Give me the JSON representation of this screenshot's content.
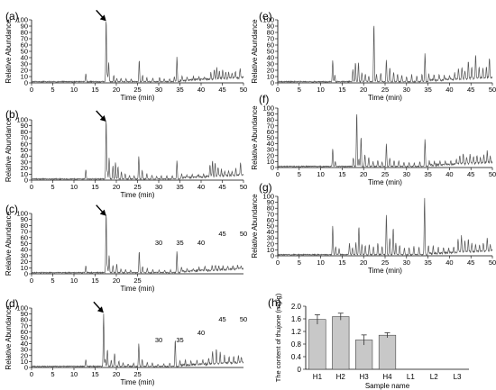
{
  "figure": {
    "background": "#ffffff",
    "trace_color": "#555555",
    "bar_color": "#c8c8c8",
    "arrow_icon": "arrow-icon"
  },
  "chart_data": [
    {
      "id": "a",
      "panel_label": "(a)",
      "type": "line",
      "ylabel": "Relative Abundance",
      "xlabel": "Time (min)",
      "xlim": [
        0,
        50
      ],
      "ylim": [
        0,
        100
      ],
      "xticks": [
        0,
        5,
        10,
        15,
        20,
        25,
        30,
        35,
        40,
        45,
        50
      ],
      "yticks": [
        0,
        10,
        20,
        30,
        40,
        50,
        60,
        70,
        80,
        90,
        100
      ],
      "arrow_at": [
        17.6,
        98
      ],
      "peaks": [
        [
          12.8,
          13
        ],
        [
          17.6,
          100
        ],
        [
          17.9,
          10
        ],
        [
          18.2,
          30
        ],
        [
          19.4,
          10
        ],
        [
          20.1,
          5
        ],
        [
          21.1,
          5
        ],
        [
          22.3,
          4
        ],
        [
          23.5,
          4
        ],
        [
          25.4,
          35
        ],
        [
          26.2,
          10
        ],
        [
          27.2,
          6
        ],
        [
          28.6,
          6
        ],
        [
          30.2,
          7
        ],
        [
          31.3,
          4
        ],
        [
          32.6,
          5
        ],
        [
          33.7,
          8
        ],
        [
          34.3,
          39
        ],
        [
          35.5,
          7
        ],
        [
          36.7,
          6
        ],
        [
          38.2,
          6
        ],
        [
          39.5,
          5
        ],
        [
          40.8,
          4
        ],
        [
          42.3,
          10
        ],
        [
          43.1,
          14
        ],
        [
          43.7,
          18
        ],
        [
          44.3,
          12
        ],
        [
          45.1,
          14
        ],
        [
          45.8,
          11
        ],
        [
          46.5,
          9
        ],
        [
          47.3,
          8
        ],
        [
          48.1,
          11
        ],
        [
          49.2,
          15
        ]
      ]
    },
    {
      "id": "b",
      "panel_label": "(b)",
      "type": "line",
      "ylabel": "Relative Abundance",
      "xlabel": "Time (min)",
      "xlim": [
        0,
        50
      ],
      "ylim": [
        0,
        100
      ],
      "xticks": [
        0,
        5,
        10,
        15,
        20,
        25,
        30,
        35,
        40,
        45,
        50
      ],
      "yticks": [
        0,
        10,
        20,
        30,
        40,
        50,
        60,
        70,
        80,
        90,
        100
      ],
      "arrow_at": [
        17.6,
        97
      ],
      "peaks": [
        [
          12.8,
          16
        ],
        [
          17.6,
          100
        ],
        [
          17.9,
          12
        ],
        [
          18.3,
          35
        ],
        [
          19.2,
          22
        ],
        [
          19.8,
          28
        ],
        [
          20.4,
          20
        ],
        [
          21.2,
          12
        ],
        [
          22.1,
          8
        ],
        [
          23.1,
          6
        ],
        [
          24.2,
          5
        ],
        [
          25.3,
          37
        ],
        [
          26.1,
          14
        ],
        [
          27.2,
          9
        ],
        [
          28.4,
          7
        ],
        [
          29.5,
          5
        ],
        [
          30.6,
          6
        ],
        [
          31.9,
          5
        ],
        [
          33.2,
          6
        ],
        [
          34.3,
          30
        ],
        [
          35.4,
          7
        ],
        [
          36.6,
          5
        ],
        [
          37.9,
          5
        ],
        [
          39.3,
          5
        ],
        [
          40.6,
          6
        ],
        [
          42.1,
          20
        ],
        [
          42.7,
          25
        ],
        [
          43.3,
          22
        ],
        [
          44.0,
          15
        ],
        [
          44.8,
          12
        ],
        [
          45.6,
          9
        ],
        [
          46.5,
          7
        ],
        [
          47.3,
          8
        ],
        [
          48.2,
          12
        ],
        [
          49.3,
          22
        ]
      ]
    },
    {
      "id": "c",
      "panel_label": "(c)",
      "type": "line",
      "ylabel": "Relative Abundance",
      "xlabel": "Time (min)",
      "xlim": [
        0,
        50
      ],
      "ylim": [
        0,
        100
      ],
      "xticks": [
        0,
        5,
        10,
        15,
        20,
        25
      ],
      "extra_ticks": [
        30,
        35,
        40,
        45,
        50
      ],
      "yticks": [
        0,
        10,
        20,
        30,
        40,
        50,
        60,
        70,
        80,
        90,
        100
      ],
      "arrow_at": [
        17.6,
        96
      ],
      "peaks": [
        [
          12.8,
          11
        ],
        [
          17.6,
          100
        ],
        [
          17.9,
          10
        ],
        [
          18.3,
          29
        ],
        [
          19.2,
          12
        ],
        [
          20.1,
          14
        ],
        [
          21.1,
          6
        ],
        [
          22.2,
          5
        ],
        [
          23.4,
          4
        ],
        [
          25.4,
          36
        ],
        [
          26.2,
          10
        ],
        [
          27.3,
          7
        ],
        [
          28.6,
          5
        ],
        [
          30.1,
          4
        ],
        [
          31.4,
          4
        ],
        [
          32.8,
          4
        ],
        [
          34.3,
          35
        ],
        [
          35.4,
          8
        ],
        [
          36.7,
          5
        ],
        [
          38.1,
          4
        ],
        [
          39.5,
          5
        ],
        [
          40.9,
          6
        ],
        [
          42.6,
          7
        ],
        [
          43.4,
          9
        ],
        [
          44.2,
          7
        ],
        [
          45.2,
          6
        ],
        [
          46.3,
          5
        ],
        [
          47.5,
          5
        ],
        [
          48.6,
          6
        ],
        [
          49.4,
          5
        ]
      ]
    },
    {
      "id": "d",
      "panel_label": "(d)",
      "type": "line",
      "ylabel": "Relative Abundance",
      "xlabel": "Time (min)",
      "xlim": [
        0,
        50
      ],
      "ylim": [
        0,
        100
      ],
      "xticks": [
        0,
        5,
        10,
        15,
        20,
        25
      ],
      "extra_ticks": [
        30,
        35,
        40,
        45,
        50
      ],
      "yticks": [
        0,
        10,
        20,
        30,
        40,
        50,
        60,
        70,
        80,
        90,
        100
      ],
      "arrow_at": [
        17.0,
        92
      ],
      "peaks": [
        [
          12.8,
          11
        ],
        [
          17.0,
          89
        ],
        [
          17.4,
          12
        ],
        [
          17.9,
          28
        ],
        [
          18.8,
          10
        ],
        [
          19.6,
          22
        ],
        [
          20.6,
          9
        ],
        [
          21.6,
          6
        ],
        [
          22.8,
          4
        ],
        [
          24.1,
          5
        ],
        [
          25.3,
          38
        ],
        [
          26.1,
          11
        ],
        [
          27.3,
          7
        ],
        [
          28.5,
          6
        ],
        [
          29.8,
          4
        ],
        [
          31.2,
          4
        ],
        [
          32.6,
          5
        ],
        [
          33.9,
          46
        ],
        [
          35.0,
          9
        ],
        [
          36.3,
          8
        ],
        [
          37.6,
          6
        ],
        [
          39.0,
          7
        ],
        [
          40.4,
          8
        ],
        [
          41.8,
          10
        ],
        [
          42.7,
          21
        ],
        [
          43.6,
          26
        ],
        [
          44.5,
          18
        ],
        [
          45.5,
          13
        ],
        [
          46.6,
          11
        ],
        [
          47.7,
          10
        ],
        [
          48.8,
          12
        ],
        [
          49.5,
          9
        ]
      ]
    },
    {
      "id": "e",
      "panel_label": "(e)",
      "type": "line",
      "ylabel": "Relative Abundance",
      "xlabel": "Time (min)",
      "xlim": [
        0,
        50
      ],
      "ylim": [
        0,
        100
      ],
      "xticks": [
        0,
        5,
        10,
        15,
        20,
        25,
        30,
        35,
        40,
        45,
        50
      ],
      "yticks": [
        0,
        10,
        20,
        30,
        40,
        50,
        60,
        70,
        80,
        90,
        100
      ],
      "peaks": [
        [
          12.8,
          34
        ],
        [
          13.3,
          10
        ],
        [
          17.5,
          20
        ],
        [
          18.1,
          30
        ],
        [
          18.8,
          31
        ],
        [
          19.6,
          14
        ],
        [
          20.4,
          12
        ],
        [
          21.2,
          9
        ],
        [
          22.4,
          93
        ],
        [
          23.0,
          12
        ],
        [
          24.0,
          14
        ],
        [
          25.3,
          35
        ],
        [
          26.1,
          22
        ],
        [
          27.0,
          15
        ],
        [
          27.9,
          12
        ],
        [
          28.9,
          10
        ],
        [
          30.0,
          8
        ],
        [
          31.2,
          11
        ],
        [
          32.4,
          9
        ],
        [
          33.6,
          12
        ],
        [
          34.3,
          45
        ],
        [
          35.2,
          10
        ],
        [
          36.4,
          8
        ],
        [
          37.6,
          9
        ],
        [
          38.8,
          7
        ],
        [
          40.0,
          6
        ],
        [
          41.2,
          10
        ],
        [
          42.1,
          17
        ],
        [
          42.9,
          20
        ],
        [
          43.6,
          14
        ],
        [
          44.4,
          28
        ],
        [
          45.2,
          19
        ],
        [
          46.1,
          38
        ],
        [
          46.9,
          17
        ],
        [
          47.8,
          15
        ],
        [
          48.6,
          17
        ],
        [
          49.3,
          32
        ]
      ]
    },
    {
      "id": "f",
      "panel_label": "(f)",
      "type": "line",
      "ylabel": "Relative Abundance",
      "xlabel": "Time (min)",
      "xlim": [
        0,
        50
      ],
      "ylim": [
        0,
        100
      ],
      "xticks": [
        0,
        5,
        10,
        15,
        20,
        25,
        30,
        35,
        40,
        45,
        50
      ],
      "yticks": [
        0,
        10,
        20,
        30,
        40,
        50,
        60,
        70,
        80,
        90,
        100
      ],
      "peaks": [
        [
          12.8,
          30
        ],
        [
          13.4,
          8
        ],
        [
          17.6,
          14
        ],
        [
          18.4,
          92
        ],
        [
          18.9,
          12
        ],
        [
          19.4,
          50
        ],
        [
          20.3,
          20
        ],
        [
          21.2,
          15
        ],
        [
          22.2,
          8
        ],
        [
          23.3,
          10
        ],
        [
          24.3,
          7
        ],
        [
          25.3,
          38
        ],
        [
          26.1,
          14
        ],
        [
          27.1,
          10
        ],
        [
          28.2,
          9
        ],
        [
          29.4,
          6
        ],
        [
          30.6,
          7
        ],
        [
          31.8,
          5
        ],
        [
          33.1,
          8
        ],
        [
          34.3,
          46
        ],
        [
          35.3,
          8
        ],
        [
          36.5,
          6
        ],
        [
          37.8,
          6
        ],
        [
          39.0,
          5
        ],
        [
          40.3,
          7
        ],
        [
          41.6,
          8
        ],
        [
          42.4,
          14
        ],
        [
          43.2,
          17
        ],
        [
          44.0,
          11
        ],
        [
          44.8,
          16
        ],
        [
          45.6,
          12
        ],
        [
          46.4,
          14
        ],
        [
          47.2,
          11
        ],
        [
          48.0,
          14
        ],
        [
          48.8,
          19
        ],
        [
          49.5,
          12
        ]
      ]
    },
    {
      "id": "g",
      "panel_label": "(g)",
      "type": "line",
      "ylabel": "Relative Abundance",
      "xlabel": "Time (min)",
      "xlim": [
        0,
        50
      ],
      "ylim": [
        0,
        100
      ],
      "xticks": [
        0,
        5,
        10,
        15,
        20,
        25,
        30,
        35,
        40,
        45,
        50
      ],
      "yticks": [
        0,
        10,
        20,
        30,
        40,
        50,
        60,
        70,
        80,
        90,
        100
      ],
      "peaks": [
        [
          12.8,
          48
        ],
        [
          13.5,
          14
        ],
        [
          14.3,
          10
        ],
        [
          16.7,
          19
        ],
        [
          17.4,
          12
        ],
        [
          18.2,
          20
        ],
        [
          18.9,
          48
        ],
        [
          19.6,
          18
        ],
        [
          20.4,
          15
        ],
        [
          21.3,
          17
        ],
        [
          22.3,
          14
        ],
        [
          23.3,
          20
        ],
        [
          24.3,
          14
        ],
        [
          25.3,
          68
        ],
        [
          26.1,
          28
        ],
        [
          26.9,
          46
        ],
        [
          27.5,
          20
        ],
        [
          28.4,
          16
        ],
        [
          29.5,
          12
        ],
        [
          30.6,
          12
        ],
        [
          31.7,
          14
        ],
        [
          32.9,
          12
        ],
        [
          34.2,
          96
        ],
        [
          35.1,
          14
        ],
        [
          36.2,
          12
        ],
        [
          37.4,
          10
        ],
        [
          38.6,
          9
        ],
        [
          39.8,
          8
        ],
        [
          41.0,
          10
        ],
        [
          42.0,
          22
        ],
        [
          42.8,
          28
        ],
        [
          43.6,
          20
        ],
        [
          44.4,
          22
        ],
        [
          45.2,
          14
        ],
        [
          46.1,
          12
        ],
        [
          47.0,
          10
        ],
        [
          47.9,
          14
        ],
        [
          48.8,
          22
        ],
        [
          49.5,
          12
        ]
      ]
    },
    {
      "id": "h",
      "panel_label": "(h)",
      "type": "bar",
      "categories": [
        "H1",
        "H2",
        "H3",
        "H4",
        "L1",
        "L2",
        "L3"
      ],
      "values": [
        1.58,
        1.67,
        0.93,
        1.08,
        0,
        0,
        0
      ],
      "errors": [
        0.15,
        0.11,
        0.16,
        0.08,
        0,
        0,
        0
      ],
      "xlabel": "Sample name",
      "ylabel": "The content of thujone (mg/g)",
      "ylim": [
        0,
        2.0
      ],
      "yticks": [
        0,
        0.4,
        0.8,
        1.2,
        1.6,
        2.0
      ],
      "ytick_labels": [
        "0",
        "0.4",
        "0.8",
        "1.2",
        "1.6",
        "2.0"
      ]
    }
  ]
}
